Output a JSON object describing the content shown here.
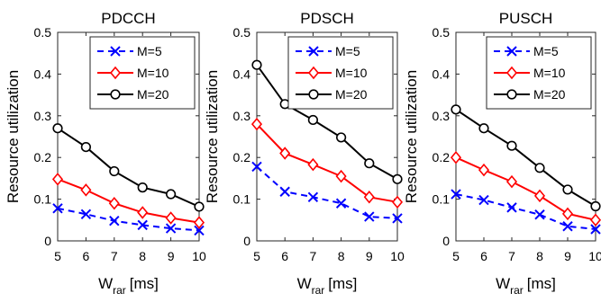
{
  "chart_data": [
    {
      "type": "line",
      "title": "PDCCH",
      "ylabel": "Resource utilization",
      "xlabel_main": "W",
      "xlabel_sub": "rar",
      "xlabel_unit": "[ms]",
      "x": [
        5,
        6,
        7,
        8,
        9,
        10
      ],
      "xlim": [
        5,
        10
      ],
      "ylim": [
        0,
        0.5
      ],
      "xticks": [
        "5",
        "6",
        "7",
        "8",
        "9",
        "10"
      ],
      "yticks": [
        0,
        0.1,
        0.2,
        0.3,
        0.4,
        0.5
      ],
      "ytick_labels": [
        "0",
        "0.1",
        "0.2",
        "0.3",
        "0.4",
        "0.5"
      ],
      "legend_position": "top-right",
      "grid": false,
      "series": [
        {
          "name": "M=5",
          "values": [
            0.078,
            0.064,
            0.048,
            0.038,
            0.03,
            0.025
          ],
          "color": "#0000ff",
          "style": "dashed",
          "marker": "x"
        },
        {
          "name": "M=10",
          "values": [
            0.148,
            0.122,
            0.09,
            0.068,
            0.055,
            0.044
          ],
          "color": "#ff0000",
          "style": "solid",
          "marker": "diamond"
        },
        {
          "name": "M=20",
          "values": [
            0.27,
            0.225,
            0.167,
            0.128,
            0.112,
            0.082
          ],
          "color": "#000000",
          "style": "solid",
          "marker": "circle"
        }
      ]
    },
    {
      "type": "line",
      "title": "PDSCH",
      "ylabel": "Resource utilization",
      "xlabel_main": "W",
      "xlabel_sub": "rar",
      "xlabel_unit": "[ms]",
      "x": [
        5,
        6,
        7,
        8,
        9,
        10
      ],
      "xlim": [
        5,
        10
      ],
      "ylim": [
        0,
        0.5
      ],
      "xticks": [
        "5",
        "6",
        "7",
        "8",
        "9",
        "10"
      ],
      "yticks": [
        0,
        0.1,
        0.2,
        0.3,
        0.4,
        0.5
      ],
      "ytick_labels": [
        "0",
        "0.1",
        "0.2",
        "0.3",
        "0.4",
        "0.5"
      ],
      "legend_position": "top-right",
      "grid": false,
      "series": [
        {
          "name": "M=5",
          "values": [
            0.178,
            0.118,
            0.105,
            0.09,
            0.058,
            0.054
          ],
          "color": "#0000ff",
          "style": "dashed",
          "marker": "x"
        },
        {
          "name": "M=10",
          "values": [
            0.28,
            0.21,
            0.183,
            0.155,
            0.105,
            0.093
          ],
          "color": "#ff0000",
          "style": "solid",
          "marker": "diamond"
        },
        {
          "name": "M=20",
          "values": [
            0.422,
            0.328,
            0.29,
            0.248,
            0.186,
            0.148
          ],
          "color": "#000000",
          "style": "solid",
          "marker": "circle"
        }
      ]
    },
    {
      "type": "line",
      "title": "PUSCH",
      "ylabel": "Resource utilization",
      "xlabel_main": "W",
      "xlabel_sub": "rar",
      "xlabel_unit": "[ms]",
      "x": [
        5,
        6,
        7,
        8,
        9,
        10
      ],
      "xlim": [
        5,
        10
      ],
      "ylim": [
        0,
        0.5
      ],
      "xticks": [
        "5",
        "6",
        "7",
        "8",
        "9",
        "10"
      ],
      "yticks": [
        0,
        0.1,
        0.2,
        0.3,
        0.4,
        0.5
      ],
      "ytick_labels": [
        "0",
        "0.1",
        "0.2",
        "0.3",
        "0.4",
        "0.5"
      ],
      "legend_position": "top-right",
      "grid": false,
      "series": [
        {
          "name": "M=5",
          "values": [
            0.112,
            0.098,
            0.08,
            0.063,
            0.035,
            0.028
          ],
          "color": "#0000ff",
          "style": "dashed",
          "marker": "x"
        },
        {
          "name": "M=10",
          "values": [
            0.2,
            0.17,
            0.142,
            0.108,
            0.065,
            0.05
          ],
          "color": "#ff0000",
          "style": "solid",
          "marker": "diamond"
        },
        {
          "name": "M=20",
          "values": [
            0.315,
            0.27,
            0.228,
            0.175,
            0.123,
            0.083
          ],
          "color": "#000000",
          "style": "solid",
          "marker": "circle"
        }
      ]
    }
  ]
}
